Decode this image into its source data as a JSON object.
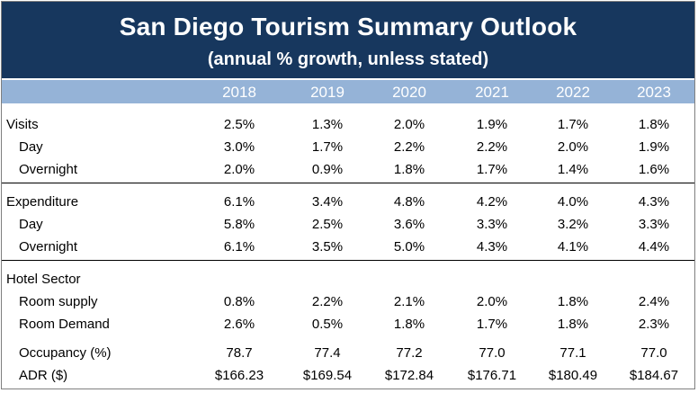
{
  "header": {
    "title": "San Diego Tourism Summary Outlook",
    "subtitle": "(annual % growth, unless stated)"
  },
  "years": [
    "2018",
    "2019",
    "2020",
    "2021",
    "2022",
    "2023"
  ],
  "rows": [
    {
      "label": "Visits",
      "indent": false,
      "values": [
        "2.5%",
        "1.3%",
        "2.0%",
        "1.9%",
        "1.7%",
        "1.8%"
      ]
    },
    {
      "label": "Day",
      "indent": true,
      "values": [
        "3.0%",
        "1.7%",
        "2.2%",
        "2.2%",
        "2.0%",
        "1.9%"
      ]
    },
    {
      "label": "Overnight",
      "indent": true,
      "values": [
        "2.0%",
        "0.9%",
        "1.8%",
        "1.7%",
        "1.4%",
        "1.6%"
      ]
    },
    {
      "label": "Expenditure",
      "indent": false,
      "values": [
        "6.1%",
        "3.4%",
        "4.8%",
        "4.2%",
        "4.0%",
        "4.3%"
      ]
    },
    {
      "label": "Day",
      "indent": true,
      "values": [
        "5.8%",
        "2.5%",
        "3.6%",
        "3.3%",
        "3.2%",
        "3.3%"
      ]
    },
    {
      "label": "Overnight",
      "indent": true,
      "values": [
        "6.1%",
        "3.5%",
        "5.0%",
        "4.3%",
        "4.1%",
        "4.4%"
      ]
    },
    {
      "label": "Hotel Sector",
      "indent": false,
      "values": [
        "",
        "",
        "",
        "",
        "",
        ""
      ]
    },
    {
      "label": "Room supply",
      "indent": true,
      "values": [
        "0.8%",
        "2.2%",
        "2.1%",
        "2.0%",
        "1.8%",
        "2.4%"
      ]
    },
    {
      "label": "Room Demand",
      "indent": true,
      "values": [
        "2.6%",
        "0.5%",
        "1.8%",
        "1.7%",
        "1.8%",
        "2.3%"
      ]
    },
    {
      "label": "Occupancy (%)",
      "indent": true,
      "values": [
        "78.7",
        "77.4",
        "77.2",
        "77.0",
        "77.1",
        "77.0"
      ]
    },
    {
      "label": "ADR ($)",
      "indent": true,
      "values": [
        "$166.23",
        "$169.54",
        "$172.84",
        "$176.71",
        "$180.49",
        "$184.67"
      ]
    }
  ],
  "colors": {
    "header_bg": "#17375e",
    "year_bar_bg": "#95b3d7"
  }
}
